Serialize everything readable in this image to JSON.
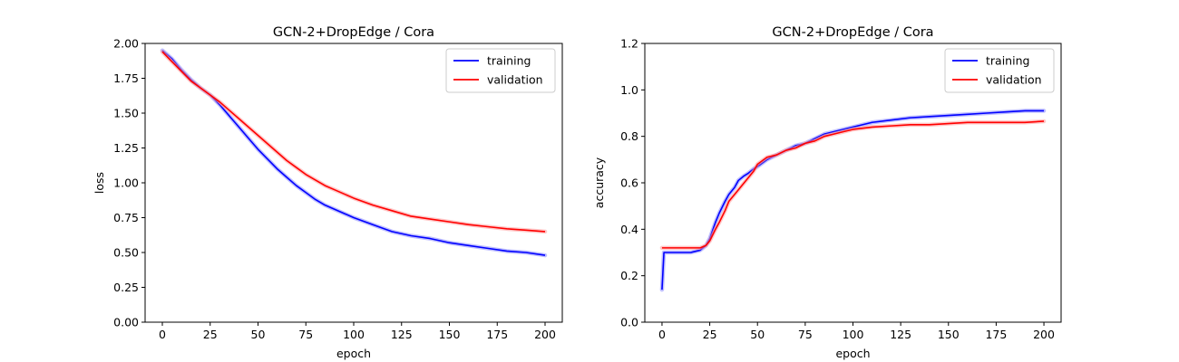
{
  "chart_data": [
    {
      "type": "line",
      "title": "GCN-2+DropEdge / Cora",
      "xlabel": "epoch",
      "ylabel": "loss",
      "xlim": [
        -9,
        209
      ],
      "ylim": [
        0.0,
        2.0
      ],
      "xticks": [
        0,
        25,
        50,
        75,
        100,
        125,
        150,
        175,
        200
      ],
      "xtick_labels": [
        "0",
        "25",
        "50",
        "75",
        "100",
        "125",
        "150",
        "175",
        "200"
      ],
      "yticks": [
        0.0,
        0.25,
        0.5,
        0.75,
        1.0,
        1.25,
        1.5,
        1.75,
        2.0
      ],
      "ytick_labels": [
        "0.00",
        "0.25",
        "0.50",
        "0.75",
        "1.00",
        "1.25",
        "1.50",
        "1.75",
        "2.00"
      ],
      "grid": false,
      "legend_position": "top-right",
      "series": [
        {
          "name": "training",
          "color": "#0000ff",
          "band_color": "#8a8aff",
          "x": [
            0,
            5,
            10,
            15,
            20,
            25,
            30,
            35,
            40,
            45,
            50,
            55,
            60,
            65,
            70,
            75,
            80,
            85,
            90,
            95,
            100,
            110,
            120,
            130,
            140,
            150,
            160,
            170,
            180,
            190,
            200
          ],
          "y": [
            1.95,
            1.89,
            1.81,
            1.74,
            1.68,
            1.63,
            1.56,
            1.48,
            1.4,
            1.32,
            1.24,
            1.17,
            1.1,
            1.04,
            0.98,
            0.93,
            0.88,
            0.84,
            0.81,
            0.78,
            0.75,
            0.7,
            0.65,
            0.62,
            0.6,
            0.57,
            0.55,
            0.53,
            0.51,
            0.5,
            0.48
          ]
        },
        {
          "name": "validation",
          "color": "#ff0000",
          "band_color": "#ff9a9a",
          "x": [
            0,
            5,
            10,
            15,
            20,
            25,
            30,
            35,
            40,
            45,
            50,
            55,
            60,
            65,
            70,
            75,
            80,
            85,
            90,
            95,
            100,
            110,
            120,
            130,
            140,
            150,
            160,
            170,
            180,
            190,
            200
          ],
          "y": [
            1.94,
            1.87,
            1.8,
            1.73,
            1.68,
            1.63,
            1.58,
            1.52,
            1.46,
            1.4,
            1.34,
            1.28,
            1.22,
            1.16,
            1.11,
            1.06,
            1.02,
            0.98,
            0.95,
            0.92,
            0.89,
            0.84,
            0.8,
            0.76,
            0.74,
            0.72,
            0.7,
            0.685,
            0.67,
            0.66,
            0.65
          ]
        }
      ]
    },
    {
      "type": "line",
      "title": "GCN-2+DropEdge / Cora",
      "xlabel": "epoch",
      "ylabel": "accuracy",
      "xlim": [
        -9,
        209
      ],
      "ylim": [
        0.0,
        1.2
      ],
      "xticks": [
        0,
        25,
        50,
        75,
        100,
        125,
        150,
        175,
        200
      ],
      "xtick_labels": [
        "0",
        "25",
        "50",
        "75",
        "100",
        "125",
        "150",
        "175",
        "200"
      ],
      "yticks": [
        0.0,
        0.2,
        0.4,
        0.6,
        0.8,
        1.0,
        1.2
      ],
      "ytick_labels": [
        "0.0",
        "0.2",
        "0.4",
        "0.6",
        "0.8",
        "1.0",
        "1.2"
      ],
      "grid": false,
      "legend_position": "top-right",
      "series": [
        {
          "name": "training",
          "color": "#0000ff",
          "band_color": "#8a8aff",
          "x": [
            0,
            1,
            5,
            10,
            15,
            20,
            23,
            25,
            28,
            30,
            33,
            35,
            38,
            40,
            43,
            45,
            48,
            50,
            55,
            60,
            65,
            70,
            75,
            80,
            85,
            90,
            95,
            100,
            110,
            120,
            130,
            140,
            150,
            160,
            170,
            180,
            190,
            200
          ],
          "y": [
            0.14,
            0.3,
            0.3,
            0.3,
            0.3,
            0.31,
            0.33,
            0.36,
            0.43,
            0.47,
            0.52,
            0.55,
            0.58,
            0.61,
            0.63,
            0.64,
            0.66,
            0.67,
            0.7,
            0.72,
            0.74,
            0.76,
            0.77,
            0.79,
            0.81,
            0.82,
            0.83,
            0.84,
            0.86,
            0.87,
            0.88,
            0.885,
            0.89,
            0.895,
            0.9,
            0.905,
            0.91,
            0.91
          ]
        },
        {
          "name": "validation",
          "color": "#ff0000",
          "band_color": "#ff9a9a",
          "x": [
            0,
            5,
            10,
            15,
            20,
            23,
            25,
            28,
            30,
            33,
            35,
            38,
            40,
            43,
            45,
            48,
            50,
            55,
            60,
            65,
            70,
            75,
            80,
            85,
            90,
            95,
            100,
            110,
            120,
            130,
            140,
            150,
            160,
            170,
            180,
            190,
            200
          ],
          "y": [
            0.32,
            0.32,
            0.32,
            0.32,
            0.32,
            0.33,
            0.35,
            0.4,
            0.43,
            0.48,
            0.52,
            0.55,
            0.57,
            0.6,
            0.62,
            0.65,
            0.68,
            0.71,
            0.72,
            0.74,
            0.75,
            0.77,
            0.78,
            0.8,
            0.81,
            0.82,
            0.83,
            0.84,
            0.845,
            0.85,
            0.85,
            0.855,
            0.86,
            0.86,
            0.86,
            0.86,
            0.865
          ]
        }
      ]
    }
  ]
}
